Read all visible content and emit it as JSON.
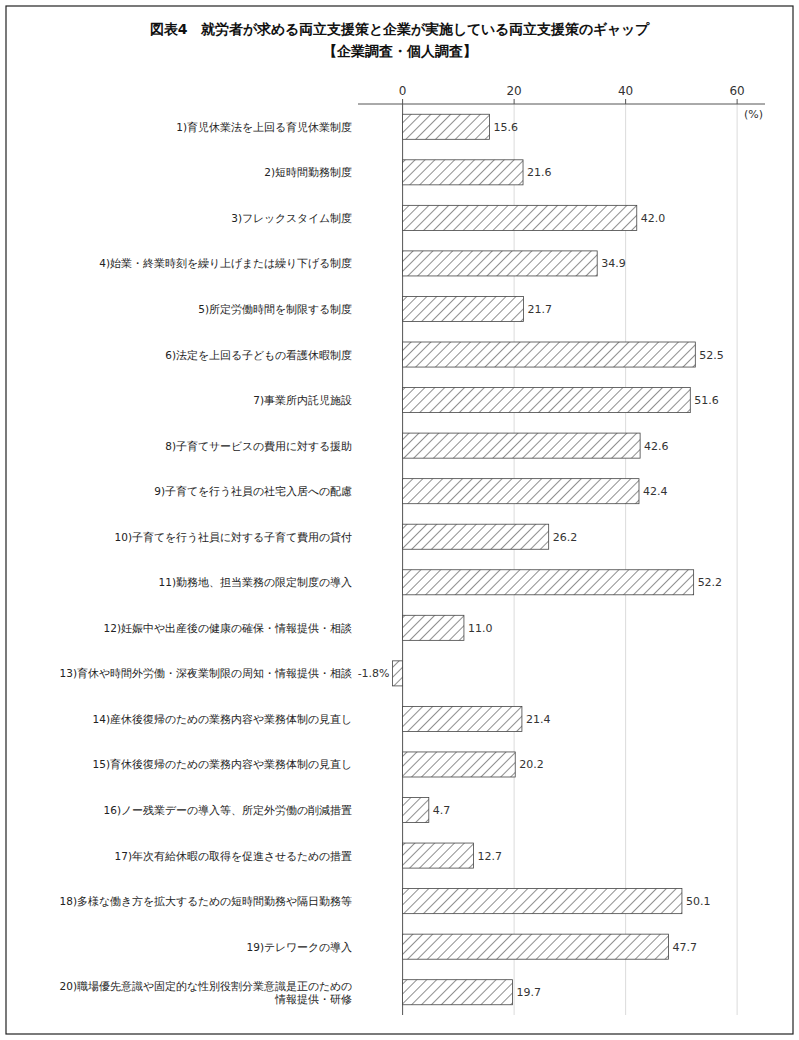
{
  "chart_data": {
    "type": "bar",
    "orientation": "horizontal",
    "title": "図表4　就労者が求める両立支援策と企業が実施している両立支援策のギャップ",
    "subtitle": "【企業調査・個人調査】",
    "categories": [
      "1)育児休業法を上回る育児休業制度",
      "2)短時間勤務制度",
      "3)フレックスタイム制度",
      "4)始業・終業時刻を繰り上げまたは繰り下げる制度",
      "5)所定労働時間を制限する制度",
      "6)法定を上回る子どもの看護休暇制度",
      "7)事業所内託児施設",
      "8)子育てサービスの費用に対する援助",
      "9)子育てを行う社員の社宅入居への配慮",
      "10)子育てを行う社員に対する子育て費用の貸付",
      "11)勤務地、担当業務の限定制度の導入",
      "12)妊娠中や出産後の健康の確保・情報提供・相談",
      "13)育休や時間外労働・深夜業制限の周知・情報提供・相談",
      "14)産休後復帰のための業務内容や業務体制の見直し",
      "15)育休後復帰のための業務内容や業務体制の見直し",
      "16)ノー残業デーの導入等、所定外労働の削減措置",
      "17)年次有給休暇の取得を促進させるための措置",
      "18)多様な働き方を拡大するための短時間勤務や隔日勤務等",
      "19)テレワークの導入",
      "20)職場優先意識や固定的な性別役割分業意識是正のための\n情報提供・研修"
    ],
    "values": [
      15.6,
      21.6,
      42.0,
      34.9,
      21.7,
      52.5,
      51.6,
      42.6,
      42.4,
      26.2,
      52.2,
      11.0,
      -1.8,
      21.4,
      20.2,
      4.7,
      12.7,
      50.1,
      47.7,
      19.7
    ],
    "value_labels": [
      "15.6",
      "21.6",
      "42.0",
      "34.9",
      "21.7",
      "52.5",
      "51.6",
      "42.6",
      "42.4",
      "26.2",
      "52.2",
      "11.0",
      "-1.8%",
      "21.4",
      "20.2",
      "4.7",
      "12.7",
      "50.1",
      "47.7",
      "19.7"
    ],
    "data_labels": true,
    "color": "#444444",
    "xlim": [
      -8,
      65
    ],
    "xticks": [
      0,
      20,
      40,
      60
    ],
    "x_label": "(%)",
    "grid": true
  }
}
